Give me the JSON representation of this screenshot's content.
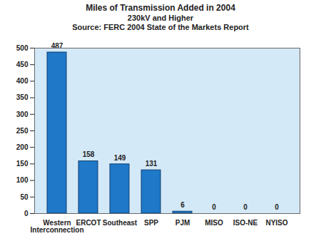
{
  "chart_data": {
    "type": "bar",
    "title": "Miles of Transmission Added in 2004",
    "subtitle": "230kV and Higher",
    "caption": "Source: FERC 2004 State of the Markets Report",
    "categories": [
      "Western Interconnection",
      "ERCOT",
      "Southeast",
      "SPP",
      "PJM",
      "MISO",
      "ISO-NE",
      "NYISO"
    ],
    "values": [
      487,
      158,
      149,
      131,
      6,
      0,
      0,
      0
    ],
    "color": "#1f78c8",
    "ylim": [
      0,
      500
    ],
    "yticks": [
      0,
      50,
      100,
      150,
      200,
      250,
      300,
      350,
      400,
      450,
      500
    ],
    "grid": false,
    "data_labels": true
  }
}
